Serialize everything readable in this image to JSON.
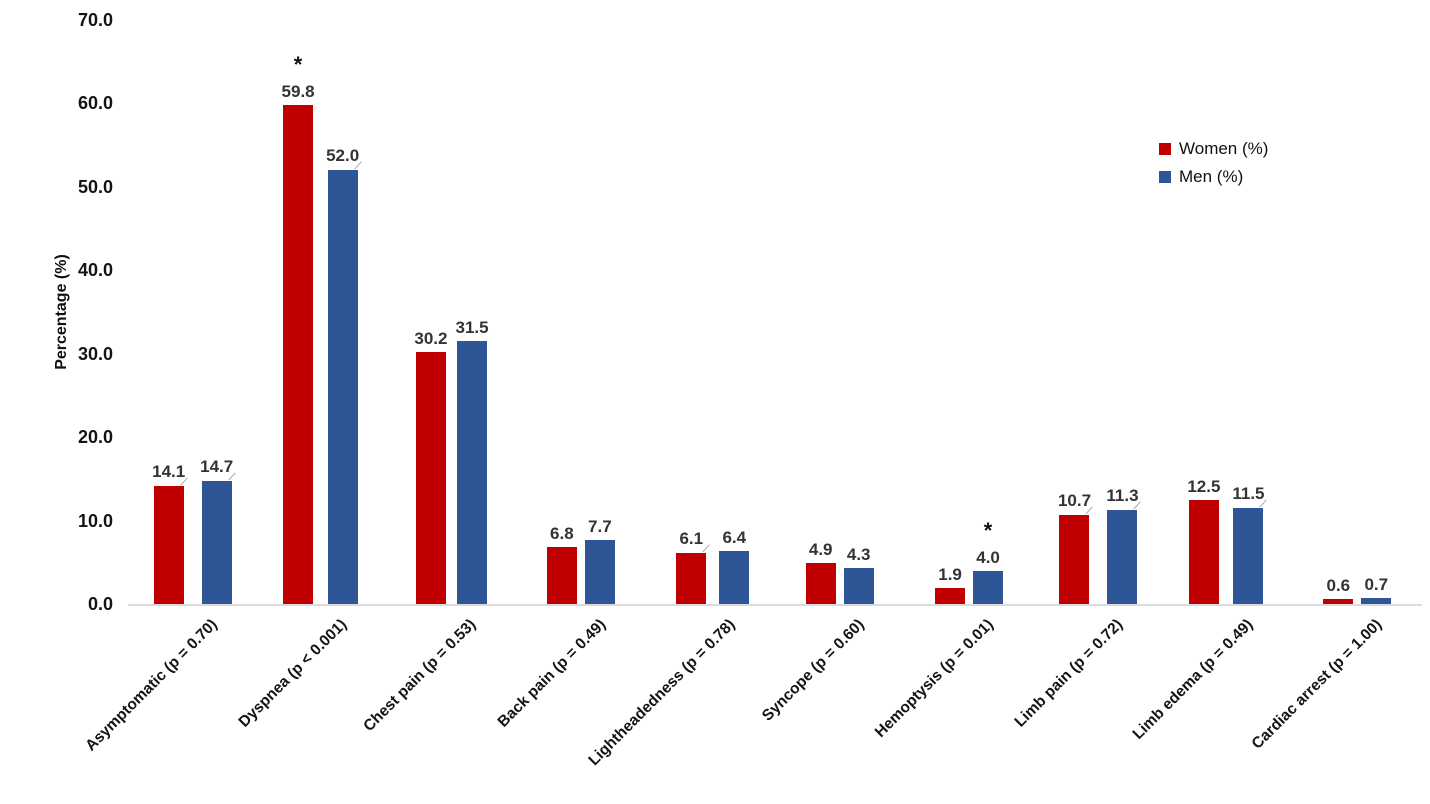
{
  "chart_data": {
    "type": "bar",
    "title": "",
    "xlabel": "",
    "ylabel": "Percentage (%)",
    "ylim": [
      0,
      70
    ],
    "yticks": [
      "0.0",
      "10.0",
      "20.0",
      "30.0",
      "40.0",
      "50.0",
      "60.0",
      "70.0"
    ],
    "grid": false,
    "legend_position": "top-right",
    "categories": [
      "Asymptomatic (p = 0.70)",
      "Dyspnea (p < 0.001)",
      "Chest pain (p = 0.53)",
      "Back pain (p = 0.49)",
      "Lightheadedness (p = 0.78)",
      "Syncope (p = 0.60)",
      "Hemoptysis (p = 0.01)",
      "Limb pain (p = 0.72)",
      "Limb edema (p = 0.49)",
      "Cardiac arrest (p = 1.00)"
    ],
    "series": [
      {
        "name": "Women (%)",
        "color": "#c00000",
        "values": [
          14.1,
          59.8,
          30.2,
          6.8,
          6.1,
          4.9,
          1.9,
          10.7,
          12.5,
          0.6
        ]
      },
      {
        "name": "Men (%)",
        "color": "#2e5596",
        "values": [
          14.7,
          52.0,
          31.5,
          7.7,
          6.4,
          4.3,
          4.0,
          11.3,
          11.5,
          0.7
        ]
      }
    ],
    "annotations": [
      {
        "text": "*",
        "category_index": 1,
        "series_index": 0
      },
      {
        "text": "*",
        "category_index": 6,
        "series_index": 1
      }
    ],
    "leader_lines": [
      [
        0,
        0
      ],
      [
        0,
        1
      ],
      [
        1,
        1
      ],
      [
        4,
        0
      ],
      [
        7,
        0
      ],
      [
        7,
        1
      ],
      [
        8,
        1
      ]
    ],
    "axis_line_color": "#dcdcdc",
    "value_label_color": "#333333"
  }
}
